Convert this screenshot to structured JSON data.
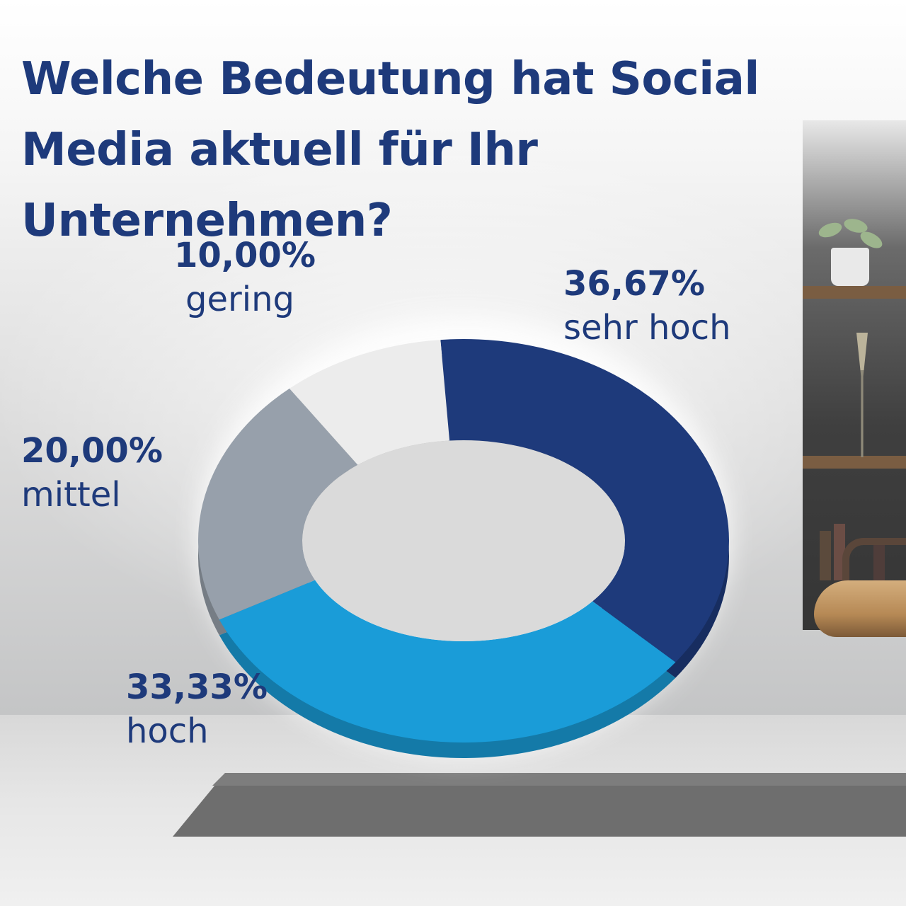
{
  "title": "Welche Bedeutung hat Social Media aktuell für Ihr Unternehmen?",
  "chart_data": {
    "type": "pie",
    "variant": "donut-3d",
    "title": "Welche Bedeutung hat Social Media aktuell für Ihr Unternehmen?",
    "categories": [
      "sehr hoch",
      "hoch",
      "mittel",
      "gering"
    ],
    "values": [
      36.67,
      33.33,
      20.0,
      10.0
    ],
    "value_labels": [
      "36,67%",
      "33,33%",
      "20,00%",
      "10,00%"
    ],
    "colors": [
      "#1e3a7b",
      "#1a9cd8",
      "#97a0ab",
      "#ececec"
    ],
    "unit": "%"
  }
}
